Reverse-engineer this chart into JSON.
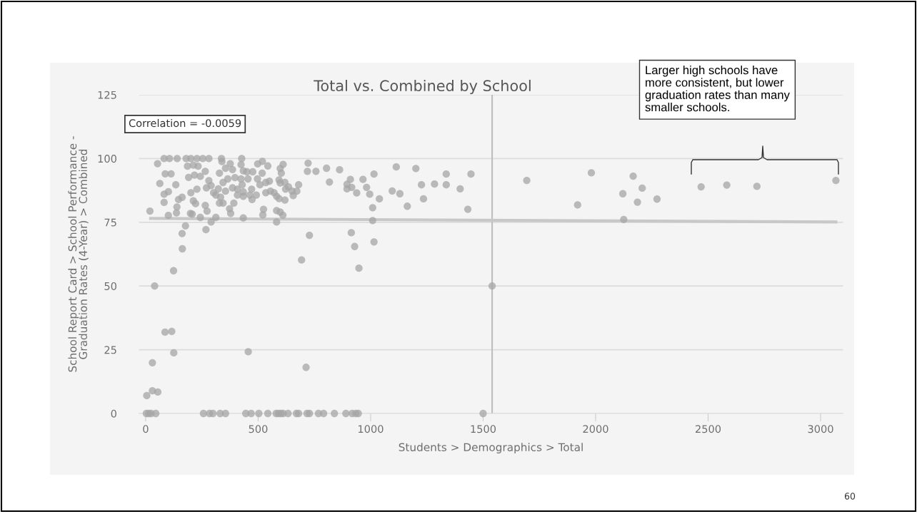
{
  "chart_data": {
    "type": "scatter",
    "title": "Total vs. Combined by School",
    "xlabel": "Students > Demographics > Total",
    "ylabel": "School Report Card > School Performance -\nGraduation Rates (4-Year) > Combined",
    "xlim": [
      -30,
      3100
    ],
    "xticks": [
      0,
      500,
      1000,
      1500,
      2000,
      2500,
      3000
    ],
    "ylim": [
      0,
      125
    ],
    "yticks": [
      0,
      25,
      50,
      75,
      100,
      125
    ],
    "grid": "y",
    "legend": false,
    "series": [
      {
        "marker": "circle",
        "color": "#a6a6a6",
        "x": [
          19,
          40,
          53,
          63,
          82,
          106,
          87,
          113,
          82,
          101,
          82,
          101,
          124,
          134,
          140,
          139,
          137,
          146,
          162,
          162,
          163,
          177,
          180,
          201,
          228,
          254,
          281,
          186,
          212,
          233,
          191,
          217,
          243,
          201,
          228,
          212,
          222,
          199,
          207,
          243,
          265,
          268,
          273,
          265,
          281,
          270,
          291,
          302,
          312,
          291,
          312,
          333,
          328,
          344,
          337,
          339,
          328,
          355,
          376,
          386,
          344,
          365,
          397,
          323,
          355,
          386,
          373,
          378,
          392,
          427,
          424,
          434,
          450,
          424,
          455,
          429,
          408,
          434,
          408,
          434,
          463,
          434,
          476,
          497,
          471,
          492,
          473,
          498,
          519,
          543,
          518,
          508,
          534,
          550,
          534,
          555,
          571,
          524,
          521,
          582,
          593,
          582,
          598,
          610,
          582,
          598,
          611,
          603,
          593,
          598,
          619,
          635,
          622,
          619,
          651,
          672,
          680,
          656,
          722,
          719,
          757,
          728,
          693,
          804,
          862,
          817,
          910,
          895,
          895,
          916,
          966,
          982,
          1015,
          938,
          996,
          1039,
          1009,
          1009,
          914,
          929,
          1015,
          948,
          1114,
          1096,
          1130,
          1163,
          1201,
          1226,
          1235,
          1284,
          1336,
          1336,
          1398,
          1432,
          1446,
          1540,
          1694,
          1920,
          1981,
          2121,
          2167,
          2207,
          2186,
          2273,
          2125,
          2469,
          2583,
          2717,
          3068,
          86,
          116,
          125,
          456,
          30,
          5,
          30,
          54,
          713,
          3,
          14,
          24,
          45,
          257,
          284,
          299,
          331,
          355,
          445,
          469,
          503,
          543,
          580,
          590,
          601,
          611,
          633,
          670,
          680,
          717,
          728,
          768,
          791,
          839,
          890,
          918,
          934,
          945,
          1500
        ],
        "values": [
          79.4,
          50,
          98,
          90.2,
          100,
          100,
          94,
          94,
          86,
          87,
          82.8,
          77.7,
          56,
          89.7,
          100,
          81,
          78.7,
          83.9,
          84.8,
          70.6,
          64.6,
          73.6,
          100,
          100,
          100,
          100,
          100,
          97,
          97.4,
          97,
          92.6,
          93.5,
          93,
          86.6,
          88,
          83.4,
          82.3,
          78.5,
          78.2,
          76.9,
          81.6,
          72.1,
          79.4,
          95,
          91.3,
          88.5,
          89.4,
          86.6,
          76.9,
          75.1,
          85.7,
          84.8,
          82.5,
          82.5,
          100,
          98.8,
          94.3,
          96.2,
          98,
          95.7,
          90.6,
          92,
          92.5,
          88.1,
          87.2,
          88.5,
          80.3,
          78.5,
          82.5,
          100,
          97.6,
          95.2,
          94.8,
          92,
          92,
          89.7,
          88,
          86.9,
          85.7,
          85.2,
          85.7,
          76.7,
          94.8,
          92,
          88,
          85.7,
          83.9,
          97.9,
          98.9,
          97.1,
          94.3,
          89.7,
          90.6,
          91.1,
          86.6,
          87.2,
          86.6,
          80.1,
          77.9,
          85.2,
          84.3,
          79.6,
          79,
          77.8,
          75.1,
          96.1,
          97.7,
          94.3,
          91.6,
          90.4,
          90.6,
          88.9,
          88,
          83.7,
          87.2,
          87.2,
          89.7,
          85.5,
          98.2,
          95,
          95,
          69.9,
          60.2,
          96.2,
          95.6,
          90.8,
          91.8,
          89.9,
          88.1,
          88.7,
          91.8,
          88.7,
          93.9,
          86.5,
          86,
          84.2,
          80.7,
          75.7,
          70.9,
          65.5,
          67.3,
          57,
          96.7,
          87.3,
          86.2,
          81.3,
          96.1,
          89.7,
          84.2,
          90,
          93.9,
          89.7,
          88.1,
          80.1,
          93.9,
          50,
          91.4,
          81.8,
          94.4,
          86.2,
          93.1,
          88.4,
          82.9,
          84.1,
          76.1,
          88.9,
          89.6,
          89.1,
          91.4,
          31.9,
          32.2,
          23.8,
          24.2,
          19.9,
          7,
          8.9,
          8.4,
          18.1,
          0,
          0,
          0,
          0,
          0,
          0,
          0,
          0,
          0,
          0,
          0,
          0,
          0,
          0,
          0,
          0,
          0,
          0,
          0,
          0,
          0,
          0,
          0,
          0,
          0,
          0,
          0,
          0,
          0,
          0
        ]
      },
      {
        "type": "line",
        "color": "#c8c8c8",
        "x": [
          22,
          3068
        ],
        "values": [
          76.5,
          75.1
        ]
      }
    ],
    "ref_lines": [
      {
        "axis": "x",
        "value": 1540,
        "color": "#bdbdbd"
      }
    ],
    "annotations": [
      "Correlation = -0.0059",
      "Larger high schools have\nmore consistent, but lower\ngraduation rates than many\nsmaller schools.",
      "60"
    ]
  }
}
